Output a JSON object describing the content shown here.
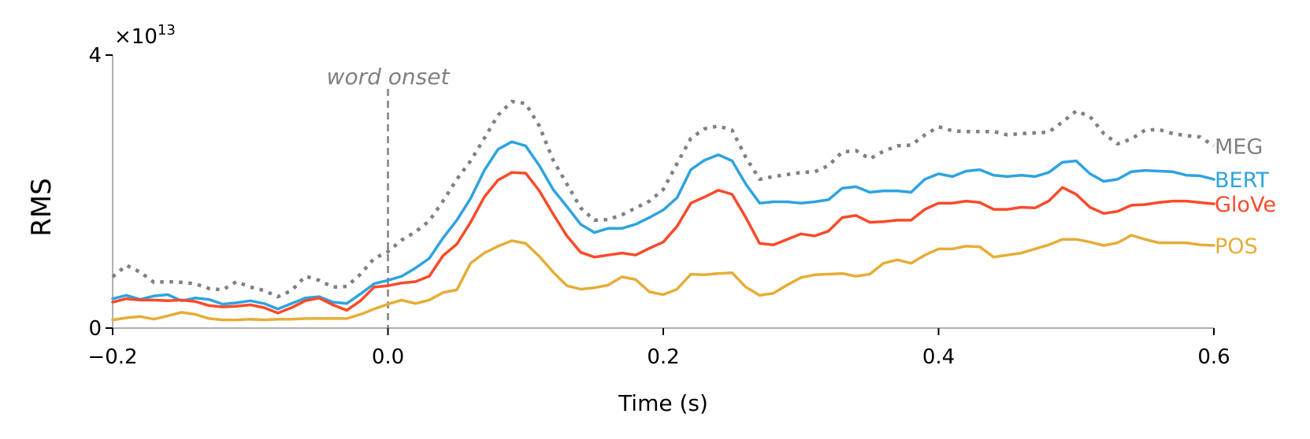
{
  "chart_data": {
    "type": "line",
    "xlabel": "Time (s)",
    "ylabel": "RMS",
    "y_multiplier": "×10",
    "y_exponent": "13",
    "xlim": [
      -0.2,
      0.6
    ],
    "ylim": [
      0,
      4
    ],
    "xticks": [
      -0.2,
      0.0,
      0.2,
      0.4,
      0.6
    ],
    "xtick_labels": [
      "−0.2",
      "0.0",
      "0.2",
      "0.4",
      "0.6"
    ],
    "yticks": [
      0,
      4
    ],
    "ytick_labels": [
      "0",
      "4"
    ],
    "annotation": {
      "text": "word onset",
      "x": 0.0
    },
    "grid": false,
    "x": [
      -0.2,
      -0.19,
      -0.18,
      -0.17,
      -0.16,
      -0.15,
      -0.14,
      -0.13,
      -0.12,
      -0.11,
      -0.1,
      -0.09,
      -0.08,
      -0.07,
      -0.06,
      -0.05,
      -0.04,
      -0.03,
      -0.02,
      -0.01,
      0.0,
      0.01,
      0.02,
      0.03,
      0.04,
      0.05,
      0.06,
      0.07,
      0.08,
      0.09,
      0.1,
      0.11,
      0.12,
      0.13,
      0.14,
      0.15,
      0.16,
      0.17,
      0.18,
      0.19,
      0.2,
      0.21,
      0.22,
      0.23,
      0.24,
      0.25,
      0.26,
      0.27,
      0.28,
      0.29,
      0.3,
      0.31,
      0.32,
      0.33,
      0.34,
      0.35,
      0.36,
      0.37,
      0.38,
      0.39,
      0.4,
      0.41,
      0.42,
      0.43,
      0.44,
      0.45,
      0.46,
      0.47,
      0.48,
      0.49,
      0.5,
      0.51,
      0.52,
      0.53,
      0.54,
      0.55,
      0.56,
      0.57,
      0.58,
      0.59,
      0.6
    ],
    "series": [
      {
        "name": "MEG",
        "color": "#808080",
        "style": "dotted",
        "values": [
          0.75,
          0.92,
          0.82,
          0.67,
          0.68,
          0.67,
          0.65,
          0.58,
          0.56,
          0.68,
          0.6,
          0.55,
          0.46,
          0.55,
          0.76,
          0.7,
          0.6,
          0.61,
          0.79,
          1.02,
          1.12,
          1.29,
          1.41,
          1.57,
          1.86,
          2.18,
          2.45,
          2.78,
          3.12,
          3.32,
          3.29,
          2.96,
          2.46,
          2.11,
          1.76,
          1.58,
          1.59,
          1.66,
          1.76,
          1.86,
          2.03,
          2.41,
          2.78,
          2.92,
          2.96,
          2.9,
          2.5,
          2.18,
          2.22,
          2.25,
          2.28,
          2.29,
          2.38,
          2.58,
          2.6,
          2.48,
          2.59,
          2.67,
          2.68,
          2.83,
          2.95,
          2.89,
          2.88,
          2.88,
          2.88,
          2.83,
          2.85,
          2.86,
          2.87,
          3.02,
          3.18,
          3.1,
          2.85,
          2.7,
          2.77,
          2.9,
          2.91,
          2.85,
          2.82,
          2.8,
          2.67
        ]
      },
      {
        "name": "BERT",
        "color": "#2ea3e0",
        "style": "solid",
        "values": [
          0.43,
          0.48,
          0.42,
          0.47,
          0.49,
          0.4,
          0.44,
          0.42,
          0.35,
          0.37,
          0.4,
          0.36,
          0.28,
          0.36,
          0.44,
          0.46,
          0.38,
          0.36,
          0.5,
          0.65,
          0.7,
          0.76,
          0.88,
          1.02,
          1.32,
          1.58,
          1.9,
          2.31,
          2.62,
          2.73,
          2.67,
          2.38,
          2.03,
          1.78,
          1.52,
          1.4,
          1.46,
          1.46,
          1.52,
          1.62,
          1.73,
          1.91,
          2.32,
          2.46,
          2.54,
          2.45,
          2.11,
          1.83,
          1.85,
          1.85,
          1.83,
          1.85,
          1.88,
          2.05,
          2.07,
          1.99,
          2.01,
          2.01,
          1.99,
          2.18,
          2.26,
          2.22,
          2.3,
          2.32,
          2.24,
          2.22,
          2.24,
          2.22,
          2.28,
          2.43,
          2.45,
          2.26,
          2.15,
          2.18,
          2.29,
          2.31,
          2.3,
          2.29,
          2.24,
          2.23,
          2.18
        ]
      },
      {
        "name": "GloVe",
        "color": "#fa4a2a",
        "style": "solid",
        "values": [
          0.38,
          0.43,
          0.41,
          0.41,
          0.4,
          0.41,
          0.39,
          0.33,
          0.31,
          0.32,
          0.34,
          0.3,
          0.22,
          0.3,
          0.4,
          0.44,
          0.34,
          0.26,
          0.4,
          0.6,
          0.62,
          0.66,
          0.68,
          0.76,
          1.06,
          1.23,
          1.55,
          1.92,
          2.17,
          2.28,
          2.27,
          2.01,
          1.67,
          1.35,
          1.11,
          1.04,
          1.07,
          1.1,
          1.07,
          1.17,
          1.26,
          1.49,
          1.83,
          1.92,
          2.02,
          1.96,
          1.62,
          1.24,
          1.22,
          1.3,
          1.38,
          1.35,
          1.42,
          1.62,
          1.65,
          1.55,
          1.56,
          1.58,
          1.58,
          1.74,
          1.83,
          1.83,
          1.86,
          1.84,
          1.74,
          1.74,
          1.77,
          1.76,
          1.86,
          2.06,
          1.96,
          1.77,
          1.68,
          1.71,
          1.8,
          1.81,
          1.84,
          1.86,
          1.86,
          1.84,
          1.82
        ]
      },
      {
        "name": "POS",
        "color": "#e6ad36",
        "style": "solid",
        "values": [
          0.12,
          0.15,
          0.17,
          0.13,
          0.18,
          0.23,
          0.2,
          0.14,
          0.12,
          0.12,
          0.13,
          0.12,
          0.13,
          0.13,
          0.14,
          0.14,
          0.14,
          0.14,
          0.2,
          0.28,
          0.35,
          0.41,
          0.36,
          0.41,
          0.52,
          0.56,
          0.95,
          1.1,
          1.2,
          1.28,
          1.24,
          1.05,
          0.82,
          0.62,
          0.57,
          0.59,
          0.63,
          0.75,
          0.71,
          0.53,
          0.49,
          0.57,
          0.79,
          0.78,
          0.8,
          0.81,
          0.6,
          0.48,
          0.51,
          0.63,
          0.74,
          0.78,
          0.79,
          0.8,
          0.76,
          0.79,
          0.95,
          1.0,
          0.95,
          1.07,
          1.16,
          1.16,
          1.2,
          1.19,
          1.04,
          1.07,
          1.1,
          1.16,
          1.22,
          1.3,
          1.3,
          1.26,
          1.21,
          1.25,
          1.36,
          1.3,
          1.25,
          1.25,
          1.25,
          1.22,
          1.21
        ]
      }
    ]
  }
}
